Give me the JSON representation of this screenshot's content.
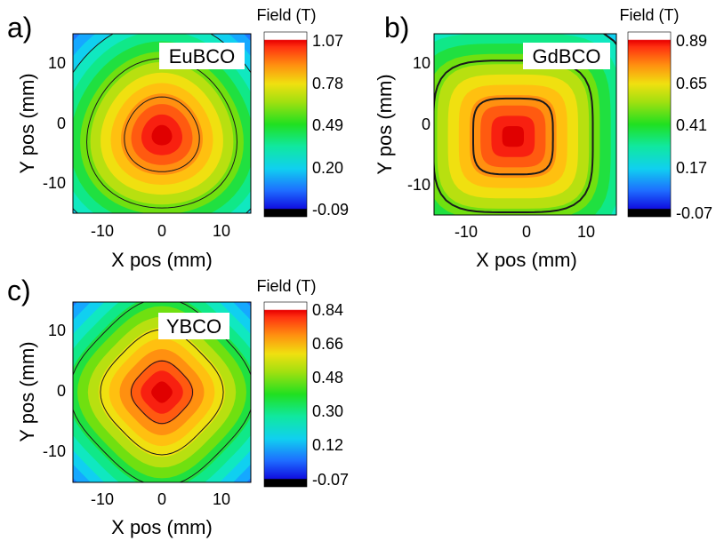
{
  "chart_data": [
    {
      "type": "heatmap",
      "panel_label": "a)",
      "sample_label": "EuBCO",
      "colorbar_title": "Field (T)",
      "colorbar_ticks": [
        1.07,
        0.78,
        0.49,
        0.2,
        -0.09
      ],
      "colorbar_tick_labels": [
        "1.07",
        "0.78",
        "0.49",
        "0.20",
        "-0.09"
      ],
      "zlim": [
        -0.09,
        1.07
      ],
      "xlabel": "X pos (mm)",
      "ylabel": "Y pos (mm)",
      "xlim": [
        -15,
        15
      ],
      "ylim": [
        -15,
        15
      ],
      "xticks": [
        -10,
        0,
        10
      ],
      "xtick_labels": [
        "-10",
        "0",
        "10"
      ],
      "yticks": [
        10,
        0,
        -10
      ],
      "ytick_labels": [
        "10",
        "0",
        "-10"
      ],
      "peak": {
        "x": 0,
        "y": -2,
        "value": 1.07
      },
      "contour_levels": [
        0.2,
        0.49,
        0.78
      ]
    },
    {
      "type": "heatmap",
      "panel_label": "b)",
      "sample_label": "GdBCO",
      "colorbar_title": "Field (T)",
      "colorbar_ticks": [
        0.89,
        0.65,
        0.41,
        0.17,
        -0.07
      ],
      "colorbar_tick_labels": [
        "0.89",
        "0.65",
        "0.41",
        "0.17",
        "-0.07"
      ],
      "zlim": [
        -0.07,
        0.89
      ],
      "xlabel": "X pos (mm)",
      "ylabel": "Y pos (mm)",
      "xlim": [
        -15,
        15
      ],
      "ylim": [
        -15,
        15
      ],
      "xticks": [
        -10,
        0,
        10
      ],
      "xtick_labels": [
        "-10",
        "0",
        "10"
      ],
      "yticks": [
        10,
        0,
        -10
      ],
      "ytick_labels": [
        "10",
        "0",
        "-10"
      ],
      "peak": {
        "x": -2,
        "y": -2,
        "value": 0.89
      },
      "contour_levels": [
        0.17,
        0.41,
        0.65
      ]
    },
    {
      "type": "heatmap",
      "panel_label": "c)",
      "sample_label": "YBCO",
      "colorbar_title": "Field (T)",
      "colorbar_ticks": [
        0.84,
        0.66,
        0.48,
        0.3,
        0.12,
        -0.07
      ],
      "colorbar_tick_labels": [
        "0.84",
        "0.66",
        "0.48",
        "0.30",
        "0.12",
        "-0.07"
      ],
      "zlim": [
        -0.07,
        0.84
      ],
      "xlabel": "X pos (mm)",
      "ylabel": "Y pos (mm)",
      "xlim": [
        -15,
        15
      ],
      "ylim": [
        -15,
        15
      ],
      "xticks": [
        -10,
        0,
        10
      ],
      "xtick_labels": [
        "-10",
        "0",
        "10"
      ],
      "yticks": [
        10,
        0,
        -10
      ],
      "ytick_labels": [
        "10",
        "0",
        "-10"
      ],
      "peak": {
        "x": 0,
        "y": 0,
        "value": 0.84
      },
      "contour_levels": [
        0.3,
        0.48,
        0.66
      ]
    }
  ]
}
